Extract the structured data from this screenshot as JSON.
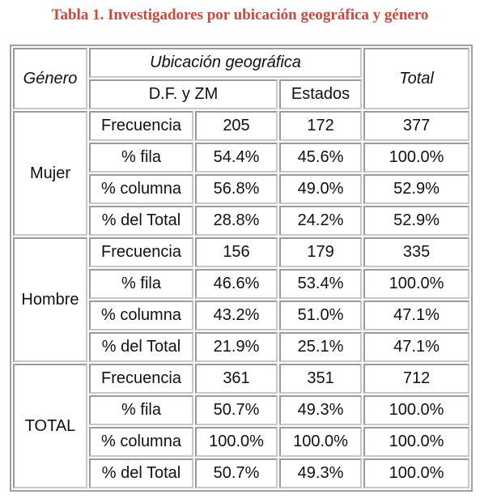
{
  "title": "Tabla 1. Investigadores por ubicación geográfica y género",
  "header": {
    "genero": "Género",
    "ubicacion": "Ubicación geográfica",
    "df": "D.F. y ZM",
    "estados": "Estados",
    "total": "Total"
  },
  "groups": [
    {
      "label": "Mujer",
      "rows": [
        {
          "measure": "Frecuencia",
          "values": [
            "205",
            "172",
            "377"
          ]
        },
        {
          "measure": "% fila",
          "values": [
            "54.4%",
            "45.6%",
            "100.0%"
          ]
        },
        {
          "measure": "% columna",
          "values": [
            "56.8%",
            "49.0%",
            "52.9%"
          ]
        },
        {
          "measure": "% del Total",
          "values": [
            "28.8%",
            "24.2%",
            "52.9%"
          ]
        }
      ]
    },
    {
      "label": "Hombre",
      "rows": [
        {
          "measure": "Frecuencia",
          "values": [
            "156",
            "179",
            "335"
          ]
        },
        {
          "measure": "% fila",
          "values": [
            "46.6%",
            "53.4%",
            "100.0%"
          ]
        },
        {
          "measure": "% columna",
          "values": [
            "43.2%",
            "51.0%",
            "47.1%"
          ]
        },
        {
          "measure": "% del Total",
          "values": [
            "21.9%",
            "25.1%",
            "47.1%"
          ]
        }
      ]
    },
    {
      "label": "TOTAL",
      "rows": [
        {
          "measure": "Frecuencia",
          "values": [
            "361",
            "351",
            "712"
          ]
        },
        {
          "measure": "% fila",
          "values": [
            "50.7%",
            "49.3%",
            "100.0%"
          ]
        },
        {
          "measure": "% columna",
          "values": [
            "100.0%",
            "100.0%",
            "100.0%"
          ]
        },
        {
          "measure": "% del Total",
          "values": [
            "50.7%",
            "49.3%",
            "100.0%"
          ]
        }
      ]
    }
  ]
}
